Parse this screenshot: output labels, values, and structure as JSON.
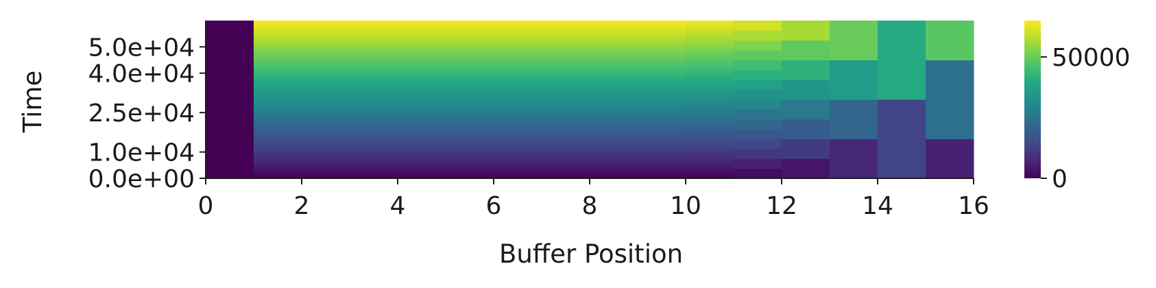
{
  "chart_data": {
    "type": "heatmap",
    "title": "",
    "xlabel": "Buffer Position",
    "ylabel": "Time",
    "xlim": [
      0,
      16
    ],
    "ylim": [
      0,
      60000
    ],
    "x_ticks": [
      0,
      2,
      4,
      6,
      8,
      10,
      12,
      14,
      16
    ],
    "x_tick_labels": [
      "0",
      "2",
      "4",
      "6",
      "8",
      "10",
      "12",
      "14",
      "16"
    ],
    "y_ticks": [
      0,
      10000,
      25000,
      40000,
      50000
    ],
    "y_tick_labels": [
      "0.0e+00",
      "1.0e+04",
      "2.5e+04",
      "4.0e+04",
      "5.0e+04"
    ],
    "colormap": "viridis",
    "color_range": [
      0,
      65000
    ],
    "colorbar_ticks": [
      0,
      50000
    ],
    "colorbar_tick_labels": [
      "0",
      "50000"
    ],
    "grid": false,
    "columns": [
      {
        "x0": 0,
        "x1": 1,
        "rule": "constant",
        "value": 0
      },
      {
        "x0": 1,
        "x1": 10,
        "rule": "linear",
        "scale": 1.08
      },
      {
        "x0": 10,
        "x1": 11,
        "rule": "step",
        "step": 1000,
        "scale": 1.06
      },
      {
        "x0": 11,
        "x1": 12,
        "rule": "step",
        "step": 3750,
        "scale": 1.04
      },
      {
        "x0": 12,
        "x1": 13,
        "rule": "step",
        "step": 7500,
        "scale": 1.0
      },
      {
        "x0": 13,
        "x1": 14,
        "rule": "step",
        "step": 15000,
        "scale": 0.95
      },
      {
        "x0": 14,
        "x1": 15,
        "rule": "step",
        "step": 30000,
        "scale": 0.88
      },
      {
        "x0": 15,
        "x1": 16,
        "rule": "step",
        "step": 30000,
        "offset": 15000,
        "scale": 0.8
      }
    ]
  }
}
